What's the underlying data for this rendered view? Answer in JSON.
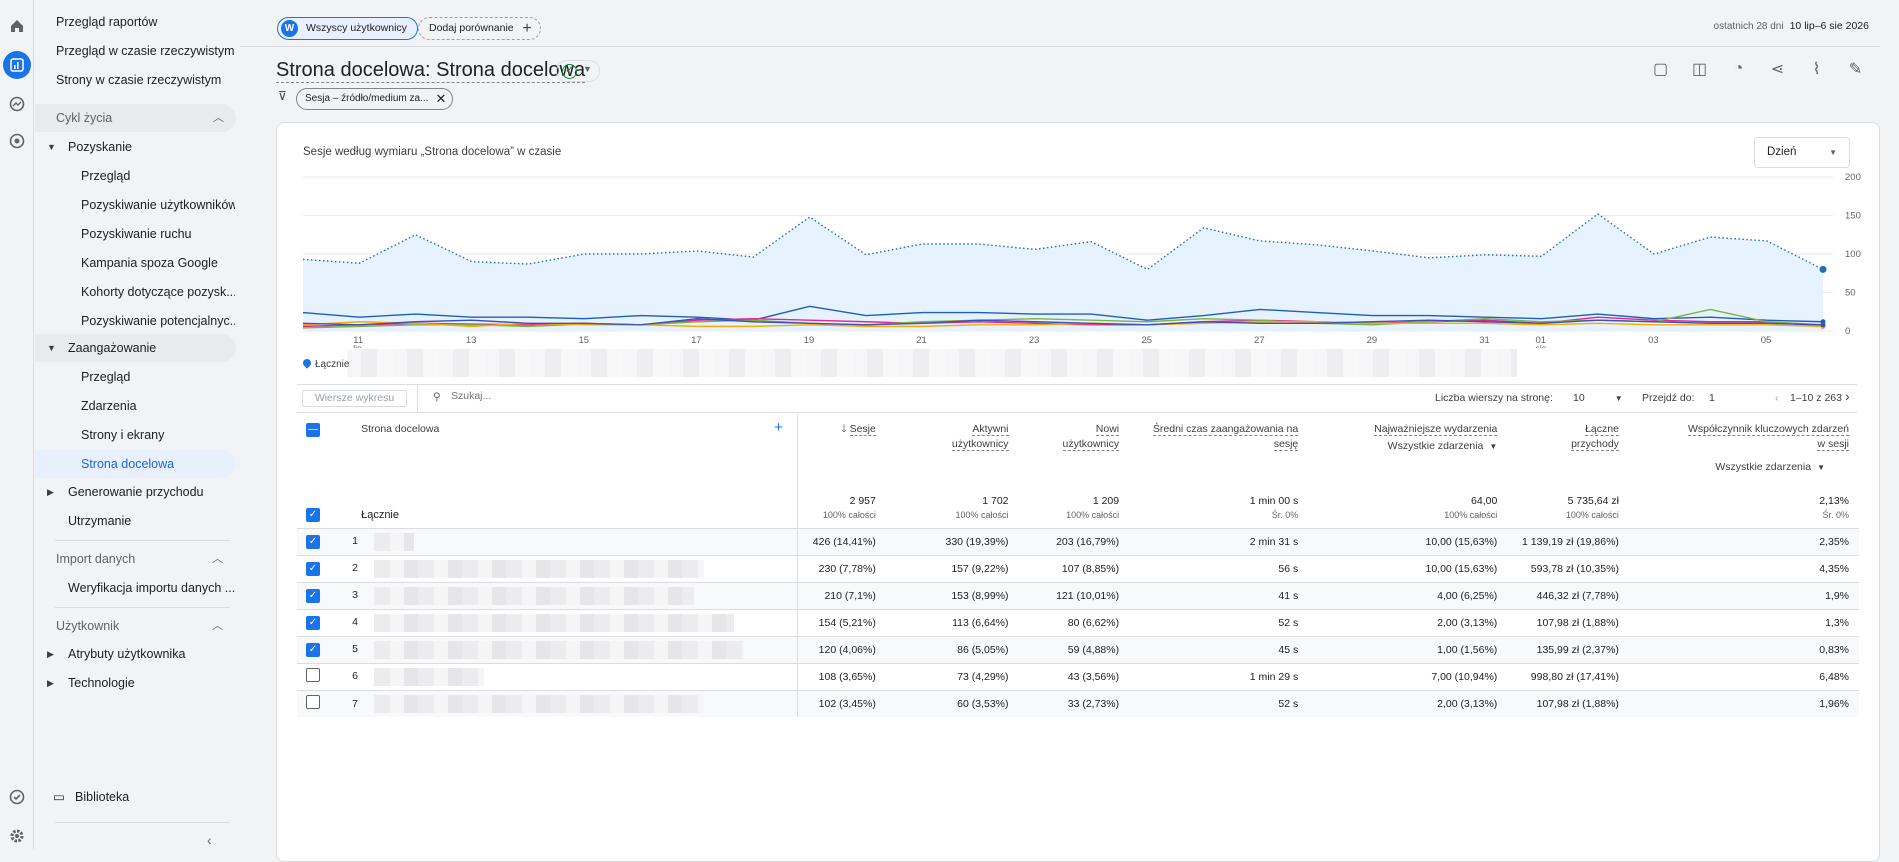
{
  "comparison": {
    "avatar_letter": "W",
    "segment": "Wszyscy użytkownicy",
    "add_label": "Dodaj porównanie"
  },
  "date": {
    "label": "ostatnich 28 dni",
    "range": "10 lip–6 sie 2026"
  },
  "report": {
    "title": "Strona docelowa: Strona docelowa",
    "filter_chip": "Sesja – źródło/medium za..."
  },
  "nav": {
    "top": [
      "Przegląd raportów",
      "Przegląd w czasie rzeczywistym",
      "Strony w czasie rzeczywistym"
    ],
    "lifecycle": {
      "label": "Cykl życia",
      "acquisition": {
        "label": "Pozyskanie",
        "items": [
          "Przegląd",
          "Pozyskiwanie użytkowników",
          "Pozyskiwanie ruchu",
          "Kampania spoza Google",
          "Kohorty dotyczące pozysk...",
          "Pozyskiwanie potencjalnyc..."
        ]
      },
      "engagement": {
        "label": "Zaangażowanie",
        "items": [
          "Przegląd",
          "Zdarzenia",
          "Strony i ekrany",
          "Strona docelowa"
        ]
      },
      "monetization": "Generowanie przychodu",
      "retention": "Utrzymanie"
    },
    "import": {
      "label": "Import danych",
      "item": "Weryfikacja importu danych ..."
    },
    "user": {
      "label": "Użytkownik",
      "items": [
        "Atrybuty użytkownika",
        "Technologie"
      ]
    },
    "library": "Biblioteka"
  },
  "chart_card": {
    "title": "Sesje według wymiaru „Strona docelowa” w czasie",
    "granularity": "Dzień",
    "legend_total": "Łącznie"
  },
  "chart_data": {
    "type": "line",
    "x": [
      "2026-07-10",
      "2026-07-11",
      "2026-07-12",
      "2026-07-13",
      "2026-07-14",
      "2026-07-15",
      "2026-07-16",
      "2026-07-17",
      "2026-07-18",
      "2026-07-19",
      "2026-07-20",
      "2026-07-21",
      "2026-07-22",
      "2026-07-23",
      "2026-07-24",
      "2026-07-25",
      "2026-07-26",
      "2026-07-27",
      "2026-07-28",
      "2026-07-29",
      "2026-07-30",
      "2026-07-31",
      "2026-08-01",
      "2026-08-02",
      "2026-08-03",
      "2026-08-04",
      "2026-08-05",
      "2026-08-06"
    ],
    "x_tick_labels": [
      "11",
      "lip",
      "13",
      "15",
      "17",
      "19",
      "21",
      "23",
      "25",
      "27",
      "29",
      "31",
      "01",
      "sie",
      "03",
      "05"
    ],
    "y_ticks": [
      "200",
      "150",
      "100",
      "50",
      "0"
    ],
    "ylim": [
      0,
      200
    ],
    "series": [
      {
        "color": "#4285f4",
        "style": "dotted-area",
        "values": [
          93,
          88,
          125,
          90,
          87,
          100,
          100,
          104,
          96,
          148,
          99,
          113,
          113,
          106,
          116,
          80,
          134,
          117,
          112,
          104,
          95,
          99,
          97,
          152,
          100,
          122,
          117,
          80
        ]
      },
      {
        "color": "#1f5ebf",
        "values": [
          24,
          18,
          22,
          18,
          18,
          16,
          20,
          18,
          14,
          32,
          20,
          24,
          24,
          22,
          22,
          14,
          20,
          28,
          24,
          20,
          20,
          18,
          16,
          22,
          16,
          18,
          14,
          12
        ]
      },
      {
        "color": "#e52592",
        "values": [
          6,
          8,
          10,
          9,
          8,
          10,
          8,
          14,
          16,
          14,
          12,
          10,
          12,
          10,
          8,
          8,
          12,
          14,
          12,
          10,
          12,
          14,
          10,
          18,
          14,
          12,
          12,
          6
        ]
      },
      {
        "color": "#7cb342",
        "values": [
          4,
          6,
          8,
          8,
          6,
          9,
          8,
          12,
          14,
          10,
          8,
          12,
          14,
          16,
          14,
          12,
          16,
          14,
          10,
          8,
          12,
          16,
          12,
          14,
          12,
          28,
          12,
          8
        ]
      },
      {
        "color": "#f9ab00",
        "values": [
          8,
          12,
          10,
          6,
          10,
          8,
          8,
          6,
          6,
          8,
          6,
          6,
          8,
          8,
          10,
          8,
          10,
          12,
          12,
          10,
          10,
          10,
          8,
          10,
          8,
          8,
          8,
          6
        ]
      },
      {
        "color": "#3f51b5",
        "values": [
          10,
          8,
          12,
          14,
          10,
          10,
          8,
          16,
          12,
          10,
          8,
          10,
          14,
          12,
          10,
          8,
          12,
          10,
          10,
          12,
          14,
          12,
          10,
          14,
          12,
          10,
          10,
          8
        ]
      }
    ]
  },
  "table": {
    "search_placeholder": "Szukaj...",
    "plot_rows_btn": "Wiersze wykresu",
    "rows_per_page_label": "Liczba wierszy na stronę:",
    "rows_per_page": "10",
    "goto_label": "Przejdź do:",
    "goto_value": "1",
    "pagination": "1–10 z 263",
    "dimension": "Strona docelowa",
    "columns": [
      "Sesje",
      "Aktywni użytkownicy",
      "Nowi użytkownicy",
      "Średni czas zaangażowania na sesję",
      "Najważniejsze wydarzenia",
      "Łączne przychody",
      "Współczynnik kluczowych zdarzeń w sesji"
    ],
    "columns_2line": [
      [
        "Sesje"
      ],
      [
        "Aktywni",
        "użytkownicy"
      ],
      [
        "Nowi",
        "użytkownicy"
      ],
      [
        "Średni czas zaangażowania na",
        "sesję"
      ],
      [
        "Najważniejsze wydarzenia"
      ],
      [
        "Łączne",
        "przychody"
      ],
      [
        "Współczynnik kluczowych zdarzeń",
        "w sesji"
      ]
    ],
    "event_filter": "Wszystkie zdarzenia",
    "total_label": "Łącznie",
    "totals": [
      [
        "2 957",
        "100% całości"
      ],
      [
        "1 702",
        "100% całości"
      ],
      [
        "1 209",
        "100% całości"
      ],
      [
        "1 min 00 s",
        "Śr. 0%"
      ],
      [
        "64,00",
        "100% całości"
      ],
      [
        "5 735,64 zł",
        "100% całości"
      ],
      [
        "2,13%",
        "Śr. 0%"
      ]
    ],
    "rows": [
      {
        "n": "1",
        "checked": true,
        "vals": [
          "426 (14,41%)",
          "330 (19,39%)",
          "203 (16,79%)",
          "2 min 31 s",
          "10,00 (15,63%)",
          "1 139,19 zł (19,86%)",
          "2,35%"
        ]
      },
      {
        "n": "2",
        "checked": true,
        "vals": [
          "230 (7,78%)",
          "157 (9,22%)",
          "107 (8,85%)",
          "56 s",
          "10,00 (15,63%)",
          "593,78 zł (10,35%)",
          "4,35%"
        ]
      },
      {
        "n": "3",
        "checked": true,
        "vals": [
          "210 (7,1%)",
          "153 (8,99%)",
          "121 (10,01%)",
          "41 s",
          "4,00 (6,25%)",
          "446,32 zł (7,78%)",
          "1,9%"
        ]
      },
      {
        "n": "4",
        "checked": true,
        "vals": [
          "154 (5,21%)",
          "113 (6,64%)",
          "80 (6,62%)",
          "52 s",
          "2,00 (3,13%)",
          "107,98 zł (1,88%)",
          "1,3%"
        ]
      },
      {
        "n": "5",
        "checked": true,
        "vals": [
          "120 (4,06%)",
          "86 (5,05%)",
          "59 (4,88%)",
          "45 s",
          "1,00 (1,56%)",
          "135,99 zł (2,37%)",
          "0,83%"
        ]
      },
      {
        "n": "6",
        "checked": false,
        "vals": [
          "108 (3,65%)",
          "73 (4,29%)",
          "43 (3,56%)",
          "1 min 29 s",
          "7,00 (10,94%)",
          "998,80 zł (17,41%)",
          "6,48%"
        ]
      },
      {
        "n": "7",
        "checked": false,
        "vals": [
          "102 (3,45%)",
          "60 (3,53%)",
          "33 (2,73%)",
          "52 s",
          "2,00 (3,13%)",
          "107,98 zł (1,88%)",
          "1,96%"
        ]
      }
    ]
  }
}
